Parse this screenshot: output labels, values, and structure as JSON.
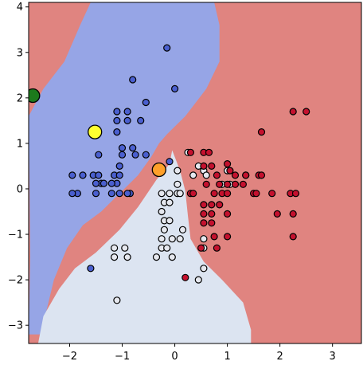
{
  "chart_data": {
    "type": "scatter",
    "title": "",
    "xlabel": "",
    "ylabel": "",
    "xlim": [
      -2.78,
      3.55
    ],
    "ylim": [
      -3.4,
      4.1
    ],
    "grid": false,
    "x_ticks": [
      -2,
      -1,
      0,
      1,
      2,
      3
    ],
    "x_tick_labels": [
      "−2",
      "−1",
      "0",
      "1",
      "2",
      "3"
    ],
    "y_ticks": [
      -3,
      -2,
      -1,
      0,
      1,
      2,
      3,
      4
    ],
    "y_tick_labels": [
      "−3",
      "−2",
      "−1",
      "0",
      "1",
      "2",
      "3",
      "4"
    ],
    "colors": {
      "blue_region": "#96a5e6",
      "light_region": "#dce4f1",
      "red_region": "#e08480",
      "blue_points": "#4a5fcf",
      "light_points": "#e6e8ef",
      "red_points": "#c4112e"
    },
    "regions": {
      "red_background": true,
      "blue_boundary": [
        [
          -2.78,
          -3.2
        ],
        [
          -2.75,
          -1.5
        ],
        [
          -2.78,
          1.6
        ],
        [
          -2.5,
          2.2
        ],
        [
          -2.1,
          2.8
        ],
        [
          -1.8,
          3.6
        ],
        [
          -1.6,
          4.1
        ],
        [
          0.75,
          4.1
        ],
        [
          0.85,
          3.6
        ],
        [
          0.85,
          2.8
        ],
        [
          0.6,
          2.2
        ],
        [
          0.2,
          1.6
        ],
        [
          -0.15,
          1.2
        ],
        [
          -0.3,
          1.0
        ],
        [
          -0.45,
          0.7
        ],
        [
          -0.7,
          0.3
        ],
        [
          -1.05,
          -0.1
        ],
        [
          -1.4,
          -0.5
        ],
        [
          -1.75,
          -0.8
        ],
        [
          -2.05,
          -1.3
        ],
        [
          -2.3,
          -2.0
        ],
        [
          -2.55,
          -3.2
        ]
      ],
      "light_boundary": [
        [
          -2.6,
          -3.4
        ],
        [
          -2.5,
          -2.8
        ],
        [
          -2.2,
          -2.2
        ],
        [
          -1.9,
          -1.75
        ],
        [
          -1.5,
          -1.4
        ],
        [
          -1.05,
          -0.9
        ],
        [
          -0.7,
          -0.4
        ],
        [
          -0.35,
          0.2
        ],
        [
          -0.1,
          0.55
        ],
        [
          -0.05,
          0.85
        ],
        [
          0.1,
          0.4
        ],
        [
          0.2,
          -0.05
        ],
        [
          0.25,
          -0.6
        ],
        [
          0.3,
          -1.1
        ],
        [
          0.55,
          -1.6
        ],
        [
          0.9,
          -2.0
        ],
        [
          1.3,
          -2.5
        ],
        [
          1.45,
          -3.1
        ],
        [
          1.45,
          -3.4
        ]
      ]
    },
    "series": [
      {
        "values": [
          [
            -1.95,
            0.3
          ],
          [
            -1.75,
            0.3
          ],
          [
            -1.55,
            0.3
          ],
          [
            -1.45,
            0.3
          ],
          [
            -1.4,
            0.12
          ],
          [
            -1.15,
            0.3
          ],
          [
            -1.05,
            0.3
          ],
          [
            -1.1,
            0.12
          ],
          [
            -1.2,
            0.12
          ],
          [
            -1.5,
            0.12
          ],
          [
            -1.35,
            0.12
          ],
          [
            -1.85,
            -0.1
          ],
          [
            -1.95,
            -0.1
          ],
          [
            -1.2,
            -0.1
          ],
          [
            -1.05,
            -0.1
          ],
          [
            -0.85,
            -0.1
          ],
          [
            -1.5,
            -0.1
          ],
          [
            -1.05,
            0.5
          ],
          [
            -1.0,
            0.75
          ],
          [
            -0.75,
            0.75
          ],
          [
            -0.55,
            0.75
          ],
          [
            -0.8,
            0.9
          ],
          [
            -1.0,
            0.9
          ],
          [
            -1.1,
            1.25
          ],
          [
            -1.55,
            1.25
          ],
          [
            -1.45,
            0.75
          ],
          [
            -1.1,
            1.5
          ],
          [
            -0.9,
            1.5
          ],
          [
            -1.1,
            1.7
          ],
          [
            -0.9,
            1.7
          ],
          [
            -0.65,
            1.5
          ],
          [
            -0.55,
            1.9
          ],
          [
            -0.8,
            2.4
          ],
          [
            0.0,
            2.2
          ],
          [
            -0.15,
            3.1
          ],
          [
            -1.6,
            -1.75
          ],
          [
            -0.9,
            -0.1
          ],
          [
            -0.1,
            0.6
          ]
        ]
      },
      {
        "values": [
          [
            -1.15,
            -1.5
          ],
          [
            -0.95,
            -1.3
          ],
          [
            -0.9,
            -1.5
          ],
          [
            -0.35,
            -1.5
          ],
          [
            -0.25,
            -1.3
          ],
          [
            -0.15,
            -1.3
          ],
          [
            -0.05,
            -1.1
          ],
          [
            -0.25,
            -1.1
          ],
          [
            -0.2,
            -0.9
          ],
          [
            -0.2,
            -0.7
          ],
          [
            -0.1,
            -0.7
          ],
          [
            -0.25,
            -0.5
          ],
          [
            -0.2,
            -0.3
          ],
          [
            -0.1,
            -0.3
          ],
          [
            -0.25,
            -0.1
          ],
          [
            -0.1,
            -0.1
          ],
          [
            0.05,
            -0.1
          ],
          [
            0.1,
            -0.1
          ],
          [
            0.05,
            0.1
          ],
          [
            0.05,
            0.4
          ],
          [
            0.25,
            0.8
          ],
          [
            0.45,
            0.5
          ],
          [
            0.55,
            0.4
          ],
          [
            0.6,
            0.3
          ],
          [
            0.35,
            0.3
          ],
          [
            0.55,
            -1.3
          ],
          [
            0.55,
            -1.75
          ],
          [
            0.45,
            -2.0
          ],
          [
            0.1,
            -1.1
          ],
          [
            0.15,
            -0.9
          ],
          [
            -0.05,
            -1.5
          ],
          [
            -1.1,
            -2.45
          ],
          [
            -1.15,
            -1.3
          ],
          [
            1.0,
            0.4
          ],
          [
            0.9,
            0.1
          ],
          [
            1.05,
            0.1
          ],
          [
            1.35,
            0.3
          ],
          [
            0.55,
            -1.1
          ]
        ]
      },
      {
        "values": [
          [
            0.3,
            0.8
          ],
          [
            0.55,
            0.8
          ],
          [
            0.65,
            0.8
          ],
          [
            0.55,
            0.5
          ],
          [
            0.7,
            0.5
          ],
          [
            1.0,
            0.55
          ],
          [
            1.05,
            0.4
          ],
          [
            0.8,
            0.3
          ],
          [
            1.15,
            0.3
          ],
          [
            1.35,
            0.3
          ],
          [
            1.6,
            0.3
          ],
          [
            1.65,
            0.3
          ],
          [
            0.6,
            0.1
          ],
          [
            0.85,
            0.1
          ],
          [
            1.0,
            0.1
          ],
          [
            1.15,
            0.1
          ],
          [
            1.3,
            0.1
          ],
          [
            1.5,
            -0.1
          ],
          [
            1.55,
            -0.1
          ],
          [
            1.85,
            -0.1
          ],
          [
            2.2,
            -0.1
          ],
          [
            2.3,
            -0.1
          ],
          [
            0.3,
            -0.1
          ],
          [
            0.35,
            -0.1
          ],
          [
            0.75,
            -0.1
          ],
          [
            0.9,
            -0.1
          ],
          [
            1.0,
            -0.1
          ],
          [
            0.55,
            -0.35
          ],
          [
            0.7,
            -0.35
          ],
          [
            0.85,
            -0.35
          ],
          [
            0.55,
            -0.55
          ],
          [
            0.7,
            -0.55
          ],
          [
            0.55,
            -0.75
          ],
          [
            0.7,
            -0.75
          ],
          [
            1.0,
            -0.55
          ],
          [
            1.0,
            -1.05
          ],
          [
            0.75,
            -1.05
          ],
          [
            1.95,
            -0.55
          ],
          [
            2.25,
            -0.55
          ],
          [
            2.25,
            -1.05
          ],
          [
            2.25,
            1.7
          ],
          [
            2.5,
            1.7
          ],
          [
            1.65,
            1.25
          ],
          [
            0.2,
            -1.95
          ],
          [
            0.5,
            -1.3
          ],
          [
            0.8,
            -1.3
          ]
        ]
      }
    ],
    "highlighted_points": [
      {
        "x": -2.7,
        "y": 2.05,
        "color": "#1c7a1c"
      },
      {
        "x": -1.52,
        "y": 1.25,
        "color": "#ffff30"
      },
      {
        "x": -0.3,
        "y": 0.42,
        "color": "#ffa02a"
      }
    ]
  }
}
